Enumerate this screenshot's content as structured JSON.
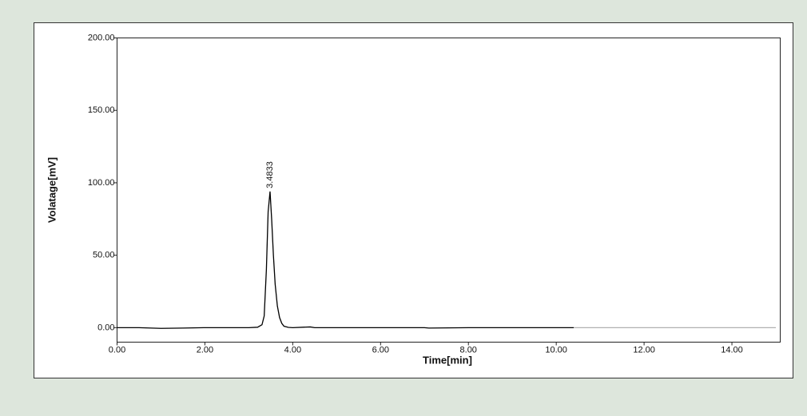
{
  "chart_data": {
    "type": "line",
    "x_label": "Time[min]",
    "y_label": "Volatage[mV]",
    "series": [
      {
        "color": "#000000",
        "x": [
          0,
          0.5,
          1,
          1.5,
          2,
          2.5,
          3,
          3.2,
          3.3,
          3.35,
          3.4,
          3.44,
          3.4833,
          3.52,
          3.56,
          3.6,
          3.65,
          3.7,
          3.75,
          3.8,
          3.9,
          4,
          4.4,
          4.5,
          5,
          6,
          7,
          7.1,
          8,
          9,
          10,
          10.4
        ],
        "values": [
          0,
          0,
          -0.5,
          -0.3,
          0,
          0,
          0,
          0.3,
          2,
          8,
          40,
          80,
          94,
          75,
          50,
          30,
          15,
          7,
          3,
          1,
          0.2,
          0,
          0.5,
          0,
          0,
          0,
          0,
          -0.3,
          0,
          0,
          0,
          0
        ]
      },
      {
        "color": "#b0b0b0",
        "x": [
          10.4,
          15
        ],
        "values": [
          0,
          0
        ]
      }
    ],
    "peak_labels": [
      3.4833
    ],
    "xlim": [
      0,
      15.1
    ],
    "xticks": [
      {
        "value": 0,
        "label": "0.00"
      },
      {
        "value": 2,
        "label": "2.00"
      },
      {
        "value": 4,
        "label": "4.00"
      },
      {
        "value": 6,
        "label": "6.00"
      },
      {
        "value": 8,
        "label": "8.00"
      },
      {
        "value": 10,
        "label": "10.00"
      },
      {
        "value": 12,
        "label": "12.00"
      },
      {
        "value": 14,
        "label": "14.00"
      }
    ],
    "ylim": [
      -10,
      200
    ],
    "yticks": [
      {
        "value": 0,
        "label": "0.00"
      },
      {
        "value": 50,
        "label": "50.00"
      },
      {
        "value": 100,
        "label": "100.00"
      },
      {
        "value": 150,
        "label": "150.00"
      },
      {
        "value": 200,
        "label": "200.00"
      }
    ]
  }
}
